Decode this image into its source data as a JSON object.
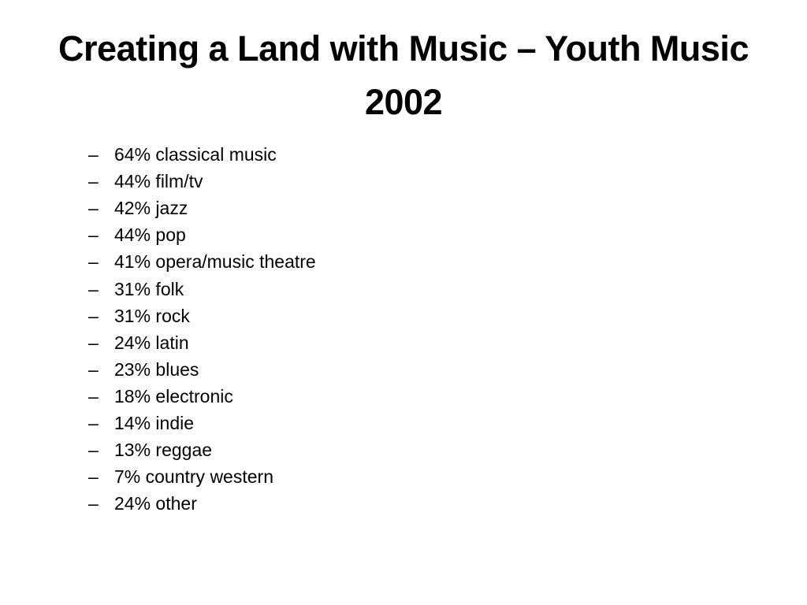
{
  "slide": {
    "title": "Creating a Land with Music – Youth Music 2002",
    "bullet_marker": "–",
    "items": [
      "64% classical music",
      "44% film/tv",
      "42% jazz",
      "44% pop",
      "41% opera/music theatre",
      "31% folk",
      "31% rock",
      "24% latin",
      "23% blues",
      "18% electronic",
      "14% indie",
      "13% reggae",
      "7% country western",
      "24% other"
    ]
  }
}
